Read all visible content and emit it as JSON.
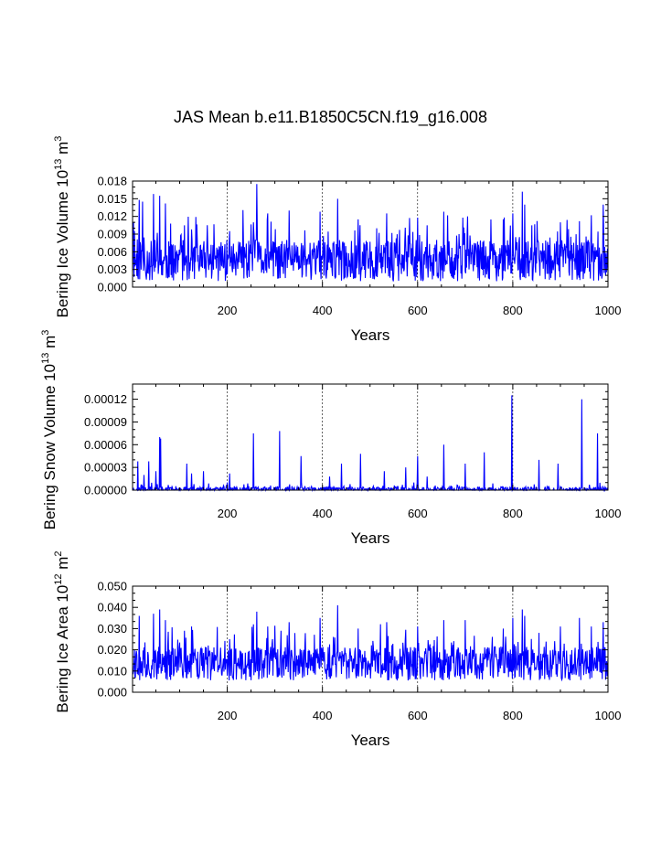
{
  "title": "JAS Mean b.e11.B1850C5CN.f19_g16.008",
  "chart_data": [
    {
      "type": "line",
      "ylabel": {
        "main": "Bering Ice Volume 10",
        "sup1": "13",
        "mid": " m",
        "sup2": "3"
      },
      "xlabel": "Years",
      "xlim": [
        1,
        1000
      ],
      "ylim": [
        0,
        0.018
      ],
      "xticks": [
        200,
        400,
        600,
        800,
        1000
      ],
      "xtick_labels": [
        "200",
        "400",
        "600",
        "800",
        "1000"
      ],
      "yticks": [
        0,
        0.003,
        0.006,
        0.009,
        0.012,
        0.015,
        0.018
      ],
      "ytick_labels": [
        "0.000",
        "0.003",
        "0.006",
        "0.009",
        "0.012",
        "0.015",
        "0.018"
      ],
      "vlines": [
        200,
        400,
        600,
        800
      ],
      "color": "#0000ff",
      "peaks": [
        [
          5,
          0.0095
        ],
        [
          15,
          0.0148
        ],
        [
          22,
          0.0145
        ],
        [
          45,
          0.0158
        ],
        [
          58,
          0.0155
        ],
        [
          70,
          0.0142
        ],
        [
          110,
          0.0105
        ],
        [
          125,
          0.0098
        ],
        [
          205,
          0.0095
        ],
        [
          255,
          0.011
        ],
        [
          262,
          0.0175
        ],
        [
          285,
          0.0125
        ],
        [
          330,
          0.013
        ],
        [
          395,
          0.0128
        ],
        [
          432,
          0.015
        ],
        [
          475,
          0.0115
        ],
        [
          535,
          0.0125
        ],
        [
          600,
          0.0118
        ],
        [
          620,
          0.0105
        ],
        [
          655,
          0.0128
        ],
        [
          695,
          0.0118
        ],
        [
          780,
          0.0115
        ],
        [
          800,
          0.0125
        ],
        [
          820,
          0.0162
        ],
        [
          825,
          0.014
        ],
        [
          840,
          0.0105
        ],
        [
          900,
          0.011
        ],
        [
          940,
          0.0112
        ],
        [
          965,
          0.0122
        ],
        [
          990,
          0.014
        ]
      ],
      "base": 0.0045,
      "amp": 0.0035,
      "floor": 0.0002,
      "seed": 11
    },
    {
      "type": "line",
      "ylabel": {
        "main": "Bering Snow Volume 10",
        "sup1": "13",
        "mid": " m",
        "sup2": "3"
      },
      "xlabel": "Years",
      "xlim": [
        1,
        1000
      ],
      "ylim": [
        0,
        0.00014
      ],
      "xticks": [
        200,
        400,
        600,
        800,
        1000
      ],
      "xtick_labels": [
        "200",
        "400",
        "600",
        "800",
        "1000"
      ],
      "yticks": [
        0,
        3e-05,
        6e-05,
        9e-05,
        0.00012
      ],
      "ytick_labels": [
        "0.00000",
        "0.00003",
        "0.00006",
        "0.00009",
        "0.00012"
      ],
      "vlines": [
        200,
        400,
        600,
        800
      ],
      "color": "#0000ff",
      "peaks": [
        [
          12,
          3.8e-05
        ],
        [
          25,
          2e-05
        ],
        [
          35,
          3.8e-05
        ],
        [
          50,
          2.5e-05
        ],
        [
          58,
          7e-05
        ],
        [
          60,
          6.8e-05
        ],
        [
          115,
          3.5e-05
        ],
        [
          125,
          2.2e-05
        ],
        [
          150,
          2.5e-05
        ],
        [
          205,
          2.2e-05
        ],
        [
          255,
          7.5e-05
        ],
        [
          310,
          7.8e-05
        ],
        [
          355,
          4.5e-05
        ],
        [
          415,
          1.8e-05
        ],
        [
          440,
          3.5e-05
        ],
        [
          480,
          4.8e-05
        ],
        [
          530,
          2.5e-05
        ],
        [
          575,
          3e-05
        ],
        [
          600,
          4.5e-05
        ],
        [
          620,
          1.8e-05
        ],
        [
          655,
          6e-05
        ],
        [
          700,
          3.5e-05
        ],
        [
          740,
          5e-05
        ],
        [
          798,
          0.000125
        ],
        [
          855,
          4e-05
        ],
        [
          895,
          3.5e-05
        ],
        [
          945,
          0.00012
        ],
        [
          978,
          7.5e-05
        ]
      ],
      "base": 5e-07,
      "amp": 4e-06,
      "floor": 0,
      "seed": 23
    },
    {
      "type": "line",
      "ylabel": {
        "main": "Bering Ice Area 10",
        "sup1": "12",
        "mid": " m",
        "sup2": "2"
      },
      "xlabel": "Years",
      "xlim": [
        1,
        1000
      ],
      "ylim": [
        0,
        0.05
      ],
      "xticks": [
        200,
        400,
        600,
        800,
        1000
      ],
      "xtick_labels": [
        "200",
        "400",
        "600",
        "800",
        "1000"
      ],
      "yticks": [
        0,
        0.01,
        0.02,
        0.03,
        0.04,
        0.05
      ],
      "ytick_labels": [
        "0.000",
        "0.010",
        "0.020",
        "0.030",
        "0.040",
        "0.050"
      ],
      "vlines": [
        200,
        400,
        600,
        800
      ],
      "color": "#0000ff",
      "peaks": [
        [
          5,
          0.02
        ],
        [
          15,
          0.036
        ],
        [
          45,
          0.037
        ],
        [
          58,
          0.039
        ],
        [
          70,
          0.034
        ],
        [
          110,
          0.029
        ],
        [
          125,
          0.031
        ],
        [
          205,
          0.025
        ],
        [
          255,
          0.032
        ],
        [
          262,
          0.038
        ],
        [
          285,
          0.031
        ],
        [
          330,
          0.033
        ],
        [
          395,
          0.035
        ],
        [
          432,
          0.041
        ],
        [
          475,
          0.03
        ],
        [
          535,
          0.033
        ],
        [
          600,
          0.031
        ],
        [
          655,
          0.034
        ],
        [
          700,
          0.034
        ],
        [
          780,
          0.03
        ],
        [
          800,
          0.035
        ],
        [
          820,
          0.039
        ],
        [
          825,
          0.036
        ],
        [
          900,
          0.031
        ],
        [
          940,
          0.035
        ],
        [
          965,
          0.031
        ],
        [
          990,
          0.033
        ]
      ],
      "base": 0.0135,
      "amp": 0.008,
      "floor": 0.001,
      "seed": 37
    }
  ]
}
